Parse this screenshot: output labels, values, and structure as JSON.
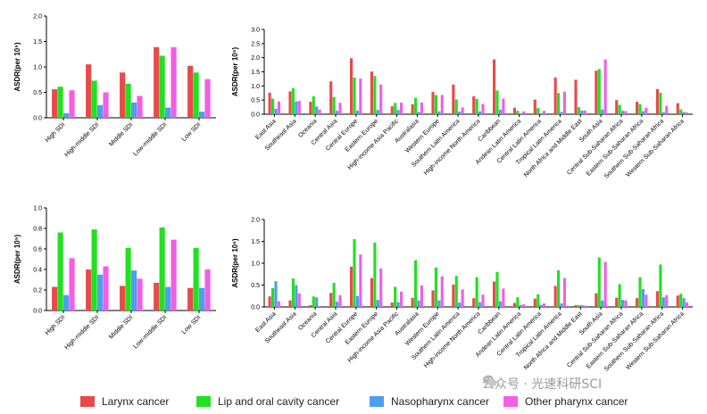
{
  "colors": {
    "series": [
      "#e84a4a",
      "#22e022",
      "#4c9ff0",
      "#f25ee6"
    ]
  },
  "legend": {
    "items": [
      {
        "label": "Larynx cancer"
      },
      {
        "label": "Lip and oral cavity cancer"
      },
      {
        "label": "Nasopharynx cancer"
      },
      {
        "label": "Other pharynx cancer"
      }
    ]
  },
  "watermark": {
    "text": "公众号 · 光速科研SCI",
    "icon": "wechat-icon"
  },
  "chart_data": [
    {
      "type": "bar",
      "ylabel": "ASDR(per 10⁵)",
      "ylim": [
        0,
        2.0
      ],
      "yticks": [
        "0.0",
        "0.5",
        "1.0",
        "1.5",
        "2.0"
      ],
      "categories": [
        "High SDI",
        "High-middle SDI",
        "Middle SDI",
        "Low-middle SDI",
        "Low SDI"
      ],
      "series": [
        {
          "name": "Larynx cancer",
          "values": [
            0.56,
            1.05,
            0.89,
            1.39,
            1.02
          ]
        },
        {
          "name": "Lip and oral cavity cancer",
          "values": [
            0.61,
            0.73,
            0.67,
            1.22,
            0.89
          ]
        },
        {
          "name": "Nasopharynx cancer",
          "values": [
            0.09,
            0.25,
            0.3,
            0.2,
            0.12
          ]
        },
        {
          "name": "Other pharynx cancer",
          "values": [
            0.54,
            0.5,
            0.43,
            1.39,
            0.76
          ]
        }
      ]
    },
    {
      "type": "bar",
      "ylabel": "ASDR(per 10⁵)",
      "ylim": [
        0,
        3.0
      ],
      "yticks": [
        "0.0",
        "0.5",
        "1.0",
        "1.5",
        "2.0",
        "2.5",
        "3.0"
      ],
      "categories": [
        "East Asia",
        "Southeast Asia",
        "Oceania",
        "Central Asia",
        "Central Europe",
        "Eastern Europe",
        "High-income Asia Pacific",
        "Australasia",
        "Western Europe",
        "Southern Latin America",
        "High-income North America",
        "Caribbean",
        "Andean Latin America",
        "Central Latin America",
        "Tropical Latin America",
        "North Africa and Middle East",
        "South Asia",
        "Central Sub-Saharan Africa",
        "Eastern Sub-Saharan Africa",
        "Southern Sub-Saharan Africa",
        "Western Sub-Saharan Africa"
      ],
      "series": [
        {
          "name": "Larynx cancer",
          "values": [
            0.76,
            0.81,
            0.44,
            1.16,
            1.98,
            1.51,
            0.28,
            0.35,
            0.79,
            1.05,
            0.63,
            1.94,
            0.23,
            0.52,
            1.3,
            1.22,
            1.54,
            0.5,
            0.44,
            0.89,
            0.39
          ]
        },
        {
          "name": "Lip and oral cavity cancer",
          "values": [
            0.55,
            0.92,
            0.63,
            0.61,
            1.3,
            1.35,
            0.4,
            0.58,
            0.68,
            0.52,
            0.54,
            0.84,
            0.12,
            0.22,
            0.75,
            0.25,
            1.6,
            0.33,
            0.36,
            0.76,
            0.17
          ]
        },
        {
          "name": "Nasopharynx cancer",
          "values": [
            0.19,
            0.45,
            0.27,
            0.12,
            0.13,
            0.15,
            0.15,
            0.08,
            0.1,
            0.09,
            0.1,
            0.16,
            0.03,
            0.04,
            0.08,
            0.13,
            0.17,
            0.12,
            0.11,
            0.07,
            0.08
          ]
        },
        {
          "name": "Other pharynx cancer",
          "values": [
            0.45,
            0.47,
            0.16,
            0.4,
            1.26,
            1.05,
            0.41,
            0.41,
            0.68,
            0.24,
            0.36,
            0.55,
            0.1,
            0.12,
            0.8,
            0.13,
            1.94,
            0.11,
            0.23,
            0.29,
            0.06
          ]
        }
      ]
    },
    {
      "type": "bar",
      "ylabel": "ASDR(per 10⁵)",
      "ylim": [
        0,
        1.0
      ],
      "yticks": [
        "0.0",
        "0.2",
        "0.4",
        "0.6",
        "0.8",
        "1.0"
      ],
      "categories": [
        "High SDI",
        "High-middle SDI",
        "Middle SDI",
        "Low-middle SDI",
        "Low SDI"
      ],
      "series": [
        {
          "name": "Larynx cancer",
          "values": [
            0.23,
            0.4,
            0.24,
            0.27,
            0.22
          ]
        },
        {
          "name": "Lip and oral cavity cancer",
          "values": [
            0.76,
            0.79,
            0.61,
            0.81,
            0.61
          ]
        },
        {
          "name": "Nasopharynx cancer",
          "values": [
            0.15,
            0.35,
            0.39,
            0.23,
            0.22
          ]
        },
        {
          "name": "Other pharynx cancer",
          "values": [
            0.51,
            0.43,
            0.31,
            0.69,
            0.4
          ]
        }
      ]
    },
    {
      "type": "bar",
      "ylabel": "ASDR(per 10⁵)",
      "ylim": [
        0,
        2.0
      ],
      "yticks": [
        "0.0",
        "0.5",
        "1.0",
        "1.5",
        "2.0"
      ],
      "categories": [
        "East Asia",
        "Southeast Asia",
        "Oceania",
        "Central Asia",
        "Central Europe",
        "Eastern Europe",
        "High-income Asia Pacific",
        "Australasia",
        "Western Europe",
        "Southern Latin America",
        "High-income North America",
        "Caribbean",
        "Andean Latin America",
        "Central Latin America",
        "Tropical Latin America",
        "North Africa and Middle East",
        "South Asia",
        "Central Sub-Saharan Africa",
        "Eastern Sub-Saharan Africa",
        "Southern Sub-Saharan Africa",
        "Western Sub-Saharan Africa"
      ],
      "series": [
        {
          "name": "Larynx cancer",
          "values": [
            0.24,
            0.15,
            0.04,
            0.32,
            0.92,
            0.66,
            0.1,
            0.21,
            0.38,
            0.51,
            0.2,
            0.58,
            0.09,
            0.19,
            0.48,
            0.04,
            0.31,
            0.21,
            0.2,
            0.36,
            0.26
          ]
        },
        {
          "name": "Lip and oral cavity cancer",
          "values": [
            0.43,
            0.65,
            0.24,
            0.55,
            1.55,
            1.47,
            0.46,
            1.07,
            0.9,
            0.71,
            0.68,
            0.8,
            0.22,
            0.29,
            0.84,
            0.04,
            1.13,
            0.52,
            0.68,
            0.97,
            0.3
          ]
        },
        {
          "name": "Nasopharynx cancer",
          "values": [
            0.59,
            0.5,
            0.22,
            0.12,
            0.25,
            0.16,
            0.11,
            0.15,
            0.15,
            0.1,
            0.11,
            0.13,
            0.04,
            0.05,
            0.08,
            0.04,
            0.15,
            0.16,
            0.41,
            0.22,
            0.2
          ]
        },
        {
          "name": "Other pharynx cancer",
          "values": [
            0.13,
            0.31,
            0.02,
            0.27,
            1.2,
            0.88,
            0.35,
            0.49,
            0.7,
            0.4,
            0.28,
            0.42,
            0.06,
            0.08,
            0.66,
            0.03,
            1.03,
            0.15,
            0.28,
            0.27,
            0.1
          ]
        }
      ]
    }
  ]
}
